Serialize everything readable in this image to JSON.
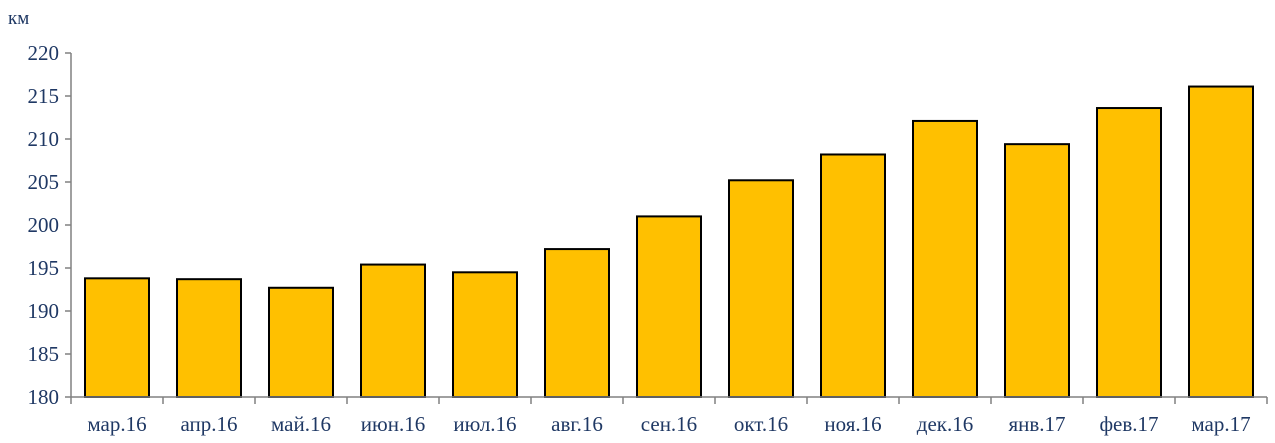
{
  "chart_data": {
    "type": "bar",
    "ylabel": "км",
    "ylim": [
      180,
      220
    ],
    "yticks": [
      180,
      185,
      190,
      195,
      200,
      205,
      210,
      215,
      220
    ],
    "grid": false,
    "categories": [
      "мар.16",
      "апр.16",
      "май.16",
      "июн.16",
      "июл.16",
      "авг.16",
      "сен.16",
      "окт.16",
      "ноя.16",
      "дек.16",
      "янв.17",
      "фев.17",
      "мар.17"
    ],
    "values": [
      193.8,
      193.7,
      192.7,
      195.4,
      194.5,
      197.2,
      201.0,
      205.2,
      208.2,
      212.1,
      209.4,
      213.6,
      216.1
    ],
    "bar_color": "#ffc000",
    "bar_edge_color": "#000000",
    "text_color": "#1f3864"
  }
}
